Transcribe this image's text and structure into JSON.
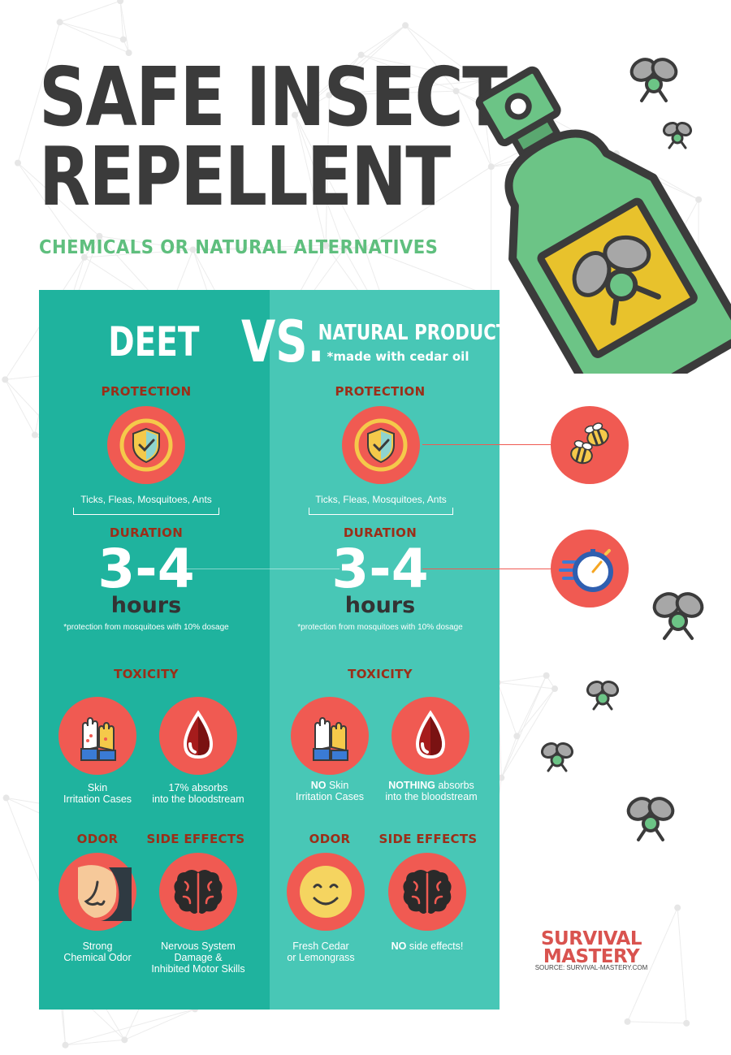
{
  "title": {
    "line1": "SAFE INSECT",
    "line2": "REPELLENT"
  },
  "subtitle": "CHEMICALS OR NATURAL ALTERNATIVES",
  "left": {
    "name": "DEET",
    "protection_label": "PROTECTION",
    "protection_text": "Ticks, Fleas, Mosquitoes, Ants",
    "duration_label": "DURATION",
    "duration_value": "3-4",
    "duration_unit": "hours",
    "duration_note": "*protection from mosquitoes with 10% dosage",
    "toxicity_label": "TOXICITY",
    "skin_line1": "Skin",
    "skin_line2": "Irritation Cases",
    "blood_line1": "17% absorbs",
    "blood_line2": "into the bloodstream",
    "odor_label": "ODOR",
    "odor_line1": "Strong",
    "odor_line2": "Chemical Odor",
    "side_label": "SIDE EFFECTS",
    "side_line1": "Nervous System",
    "side_line2": "Damage &",
    "side_line3": "Inhibited Motor Skills"
  },
  "vs": "VS.",
  "right": {
    "name": "NATURAL PRODUCTS",
    "name_note": "*made with cedar oil",
    "protection_label": "PROTECTION",
    "protection_text": "Ticks, Fleas, Mosquitoes, Ants",
    "duration_label": "DURATION",
    "duration_value": "3-4",
    "duration_unit": "hours",
    "duration_note": "*protection from mosquitoes with 10% dosage",
    "toxicity_label": "TOXICITY",
    "skin_bold": "NO",
    "skin_line1": "Skin",
    "skin_line2": "Irritation Cases",
    "blood_bold": "NOTHING",
    "blood_line1": "absorbs",
    "blood_line2": "into the bloodstream",
    "odor_label": "ODOR",
    "odor_line1": "Fresh Cedar",
    "odor_line2": "or Lemongrass",
    "side_label": "SIDE EFFECTS",
    "side_bold": "NO",
    "side_line1": "side effects!"
  },
  "brand": {
    "line1": "SURVIVAL",
    "line2": "MASTERY",
    "source": "SOURCE: SURVIVAL-MASTERY.COM"
  },
  "colors": {
    "title": "#3b3b3b",
    "subtitle": "#5fbf7e",
    "panel_left": "#1fb39e",
    "panel_right": "#48c7b6",
    "label": "#9b2e18",
    "circle": "#f05a52",
    "bottle": "#6cc486",
    "label_yellow": "#e8c22c",
    "brand": "#d9534f"
  },
  "icons": {
    "protection": "shield-check-icon",
    "bees": "bee-icon",
    "stopwatch": "stopwatch-icon",
    "skin": "hands-icon",
    "blood": "blood-drop-icon",
    "nose": "nose-icon",
    "smile": "smiley-icon",
    "brain": "brain-icon",
    "fly": "fly-icon",
    "bottle": "spray-bottle-icon"
  }
}
